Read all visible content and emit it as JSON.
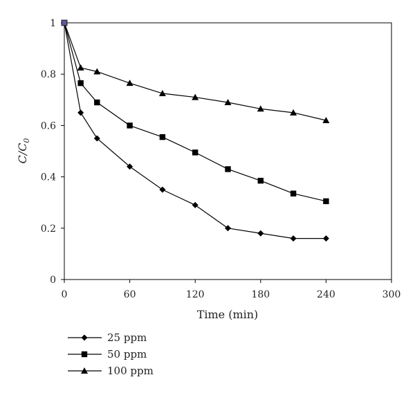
{
  "chart_data": {
    "type": "line",
    "xlabel": "Time (min)",
    "ylabel": {
      "main": "C/C",
      "sub": "0"
    },
    "xlim": [
      0,
      300
    ],
    "ylim": [
      0,
      1
    ],
    "xticks": [
      0,
      60,
      120,
      180,
      240,
      300
    ],
    "yticks": [
      0,
      0.2,
      0.4,
      0.6,
      0.8,
      1
    ],
    "xtick_labels": [
      "0",
      "60",
      "120",
      "180",
      "240",
      "300"
    ],
    "ytick_labels": [
      "0",
      "0.2",
      "0.4",
      "0.6",
      "0.8",
      "1"
    ],
    "grid": false,
    "legend_position": "below",
    "series": [
      {
        "name": "25 ppm",
        "marker": "diamond",
        "x": [
          0,
          15,
          30,
          60,
          90,
          120,
          150,
          180,
          210,
          240
        ],
        "y": [
          1.0,
          0.65,
          0.55,
          0.44,
          0.35,
          0.29,
          0.2,
          0.18,
          0.16,
          0.16
        ]
      },
      {
        "name": "50 ppm",
        "marker": "square",
        "x": [
          0,
          15,
          30,
          60,
          90,
          120,
          150,
          180,
          210,
          240
        ],
        "y": [
          1.0,
          0.765,
          0.69,
          0.6,
          0.555,
          0.495,
          0.43,
          0.385,
          0.335,
          0.305
        ]
      },
      {
        "name": "100 ppm",
        "marker": "triangle",
        "x": [
          0,
          15,
          30,
          60,
          90,
          120,
          150,
          180,
          210,
          240
        ],
        "y": [
          1.0,
          0.825,
          0.81,
          0.765,
          0.725,
          0.71,
          0.69,
          0.665,
          0.65,
          0.62
        ]
      }
    ],
    "colors": {
      "line": "#000000",
      "marker": "#000000",
      "origin_marker": "#5a5a9a"
    }
  }
}
